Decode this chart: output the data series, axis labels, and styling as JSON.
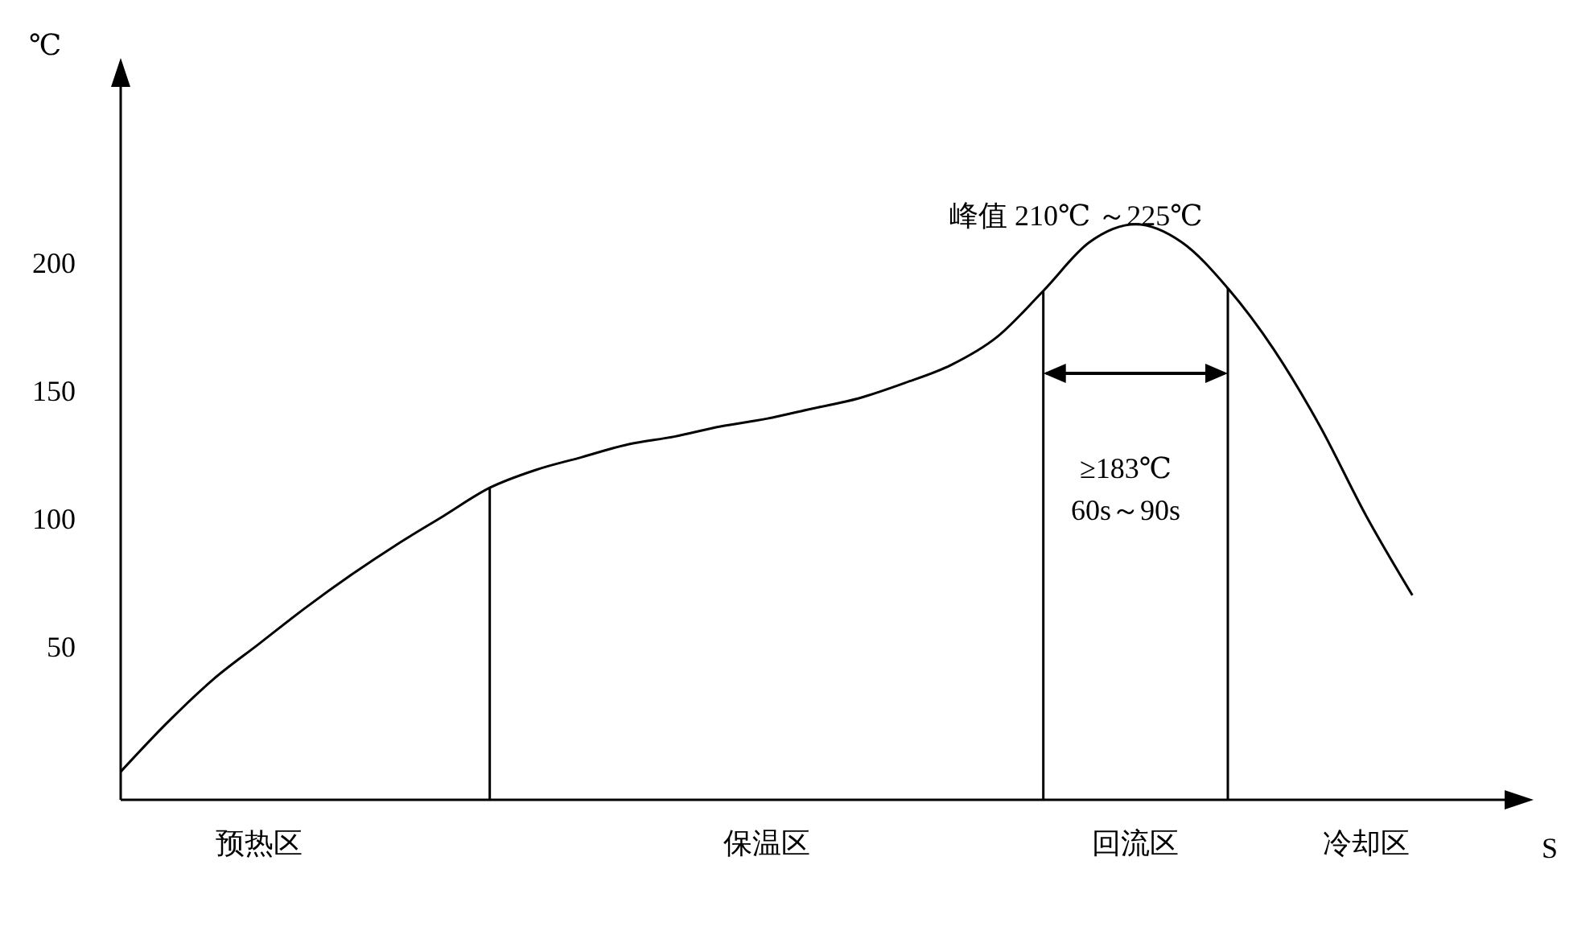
{
  "chart_data": {
    "type": "line",
    "xlabel": "S",
    "ylabel": "℃",
    "categories": [
      null,
      null,
      null,
      "预热区",
      null,
      null,
      null,
      null,
      null,
      null,
      null,
      null,
      null,
      null,
      "保温区",
      null,
      null,
      null,
      null,
      null,
      null,
      null,
      "回流区",
      null,
      null,
      null,
      null,
      "冷却区",
      null,
      null,
      null
    ],
    "series": [
      {
        "color": "#000000",
        "values": [
          1,
          20,
          37,
          51,
          65,
          78,
          90,
          101,
          112,
          119,
          124,
          129,
          132,
          136,
          139,
          143,
          147,
          153,
          160,
          171,
          189,
          208,
          215,
          208,
          190,
          166,
          136,
          101,
          70,
          null,
          null
        ]
      }
    ],
    "ylim": [
      -10,
      270
    ],
    "yticks": [
      50,
      100,
      150,
      200
    ],
    "marker": "none",
    "annotations": [
      "峰值 210℃ ～225℃",
      "≥183℃",
      "60s～90s"
    ]
  }
}
